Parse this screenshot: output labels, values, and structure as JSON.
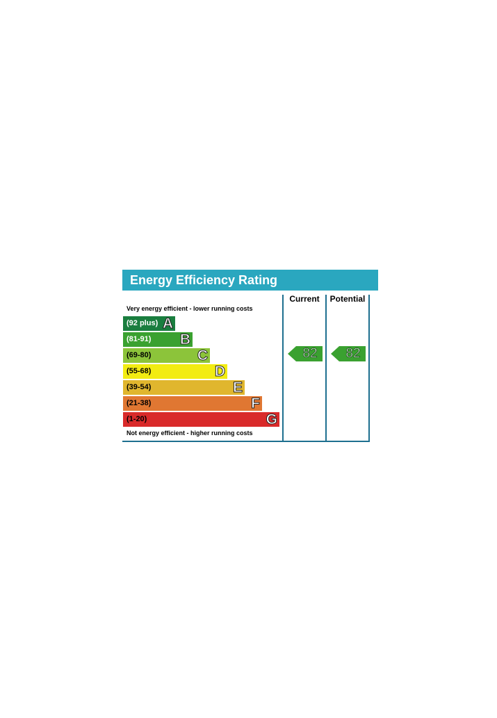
{
  "chart_data": {
    "type": "bar",
    "title": "Energy Efficiency Rating",
    "top_caption": "Very energy efficient - lower running costs",
    "bottom_caption": "Not energy efficient - higher running costs",
    "columns": [
      "Current",
      "Potential"
    ],
    "bands": [
      {
        "letter": "A",
        "range": "(92 plus)",
        "color": "#1a7e3f",
        "text_color": "#ffffff",
        "level": 1
      },
      {
        "letter": "B",
        "range": "(81-91)",
        "color": "#3aa130",
        "text_color": "#ffffff",
        "level": 2
      },
      {
        "letter": "C",
        "range": "(69-80)",
        "color": "#8cc43a",
        "text_color": "#000000",
        "level": 3
      },
      {
        "letter": "D",
        "range": "(55-68)",
        "color": "#f2ec12",
        "text_color": "#000000",
        "level": 4
      },
      {
        "letter": "E",
        "range": "(39-54)",
        "color": "#e0b62e",
        "text_color": "#000000",
        "level": 5
      },
      {
        "letter": "F",
        "range": "(21-38)",
        "color": "#e07732",
        "text_color": "#000000",
        "level": 6
      },
      {
        "letter": "G",
        "range": "(1-20)",
        "color": "#d92a2a",
        "text_color": "#000000",
        "level": 7
      }
    ],
    "current": {
      "value": 82,
      "band": "B",
      "color": "#3aa130"
    },
    "potential": {
      "value": 82,
      "band": "B",
      "color": "#3aa130"
    },
    "frame_color": "#1d6f8f",
    "header_color": "#2aa7bf"
  }
}
